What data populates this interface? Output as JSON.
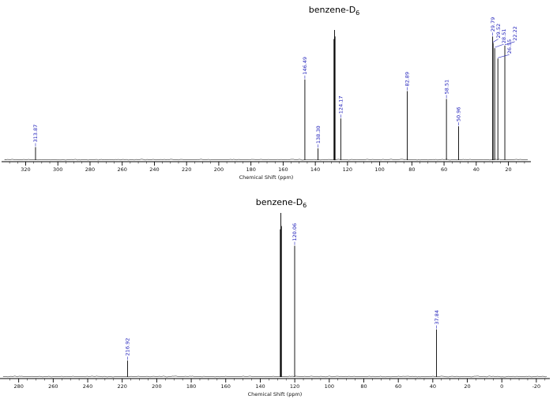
{
  "colors": {
    "background": "#ffffff",
    "trace": "#000000",
    "axis": "#000000",
    "tick_label": "#111111",
    "peak_label": "#2222bb"
  },
  "chart_data": [
    {
      "type": "line",
      "subtype": "nmr-spectrum",
      "title": "benzene-D6",
      "solvent_label": {
        "main": "benzene-D",
        "sub": "6",
        "ppm": 128.06
      },
      "xlabel": "Chemical Shift (ppm)",
      "x_range": [
        333,
        8
      ],
      "x_ticks_major": [
        320,
        300,
        280,
        260,
        240,
        220,
        200,
        180,
        160,
        140,
        120,
        100,
        80,
        60,
        40,
        20
      ],
      "x_tick_minor_step": 5,
      "grid": false,
      "peaks": [
        {
          "ppm": 313.87,
          "height": 0.1,
          "label": "313.87"
        },
        {
          "ppm": 146.49,
          "height": 0.62,
          "label": "146.49"
        },
        {
          "ppm": 138.3,
          "height": 0.09,
          "label": "138.30"
        },
        {
          "ppm": 128.39,
          "height": 0.93,
          "label": null
        },
        {
          "ppm": 128.06,
          "height": 1.0,
          "label": null
        },
        {
          "ppm": 127.73,
          "height": 0.95,
          "label": null
        },
        {
          "ppm": 124.17,
          "height": 0.32,
          "label": "124.17"
        },
        {
          "ppm": 82.89,
          "height": 0.53,
          "label": "82.89"
        },
        {
          "ppm": 58.51,
          "height": 0.47,
          "label": "58.51"
        },
        {
          "ppm": 50.96,
          "height": 0.26,
          "label": "50.96"
        },
        {
          "ppm": 29.79,
          "height": 0.95,
          "label": "29.79"
        },
        {
          "ppm": 29.52,
          "height": 0.9,
          "label": "29.52"
        },
        {
          "ppm": 28.51,
          "height": 0.86,
          "label": "28.51"
        },
        {
          "ppm": 26.55,
          "height": 0.78,
          "label": "26.55"
        },
        {
          "ppm": 22.22,
          "height": 0.88,
          "label": "22.22"
        }
      ]
    },
    {
      "type": "line",
      "subtype": "nmr-spectrum",
      "title": "benzene-D6",
      "solvent_label": {
        "main": "benzene-D",
        "sub": "6",
        "ppm": 128.06
      },
      "xlabel": "Chemical Shift (ppm)",
      "x_range": [
        289,
        -26
      ],
      "x_ticks_major": [
        280,
        260,
        240,
        220,
        200,
        180,
        160,
        140,
        120,
        100,
        80,
        60,
        40,
        20,
        0,
        -20
      ],
      "x_tick_minor_step": 5,
      "grid": false,
      "peaks": [
        {
          "ppm": 216.92,
          "height": 0.1,
          "label": "216.92"
        },
        {
          "ppm": 128.39,
          "height": 0.9,
          "label": null
        },
        {
          "ppm": 128.06,
          "height": 1.0,
          "label": null
        },
        {
          "ppm": 127.73,
          "height": 0.92,
          "label": null
        },
        {
          "ppm": 120.06,
          "height": 0.8,
          "label": "120.06"
        },
        {
          "ppm": 37.84,
          "height": 0.29,
          "label": "37.84"
        }
      ]
    }
  ]
}
